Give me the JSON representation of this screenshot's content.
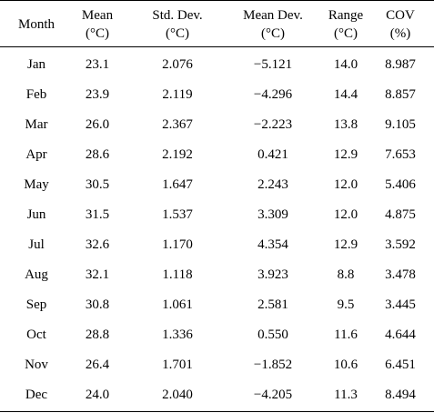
{
  "table": {
    "headers": [
      [
        "Month"
      ],
      [
        "Mean",
        "(°C)"
      ],
      [
        "Std. Dev.",
        "(°C)"
      ],
      [
        "Mean Dev.",
        "(°C)"
      ],
      [
        "Range",
        "(°C)"
      ],
      [
        "COV",
        "(%)"
      ]
    ],
    "rows": [
      [
        "Jan",
        "23.1",
        "2.076",
        "−5.121",
        "14.0",
        "8.987"
      ],
      [
        "Feb",
        "23.9",
        "2.119",
        "−4.296",
        "14.4",
        "8.857"
      ],
      [
        "Mar",
        "26.0",
        "2.367",
        "−2.223",
        "13.8",
        "9.105"
      ],
      [
        "Apr",
        "28.6",
        "2.192",
        "0.421",
        "12.9",
        "7.653"
      ],
      [
        "May",
        "30.5",
        "1.647",
        "2.243",
        "12.0",
        "5.406"
      ],
      [
        "Jun",
        "31.5",
        "1.537",
        "3.309",
        "12.0",
        "4.875"
      ],
      [
        "Jul",
        "32.6",
        "1.170",
        "4.354",
        "12.9",
        "3.592"
      ],
      [
        "Aug",
        "32.1",
        "1.118",
        "3.923",
        "8.8",
        "3.478"
      ],
      [
        "Sep",
        "30.8",
        "1.061",
        "2.581",
        "9.5",
        "3.445"
      ],
      [
        "Oct",
        "28.8",
        "1.336",
        "0.550",
        "11.6",
        "4.644"
      ],
      [
        "Nov",
        "26.4",
        "1.701",
        "−1.852",
        "10.6",
        "6.451"
      ],
      [
        "Dec",
        "24.0",
        "2.040",
        "−4.205",
        "11.3",
        "8.494"
      ]
    ]
  }
}
